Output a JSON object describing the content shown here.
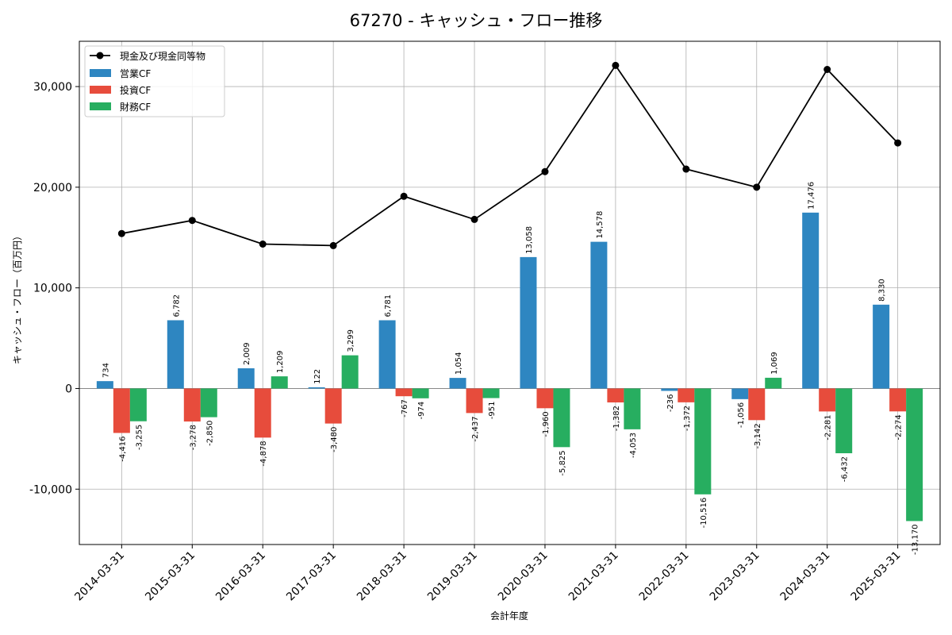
{
  "chart_data": {
    "type": "bar",
    "title": "67270 - キャッシュ・フロー推移",
    "xlabel": "会計年度",
    "ylabel": "キャッシュ・フロー（百万円）",
    "categories": [
      "2014-03-31",
      "2015-03-31",
      "2016-03-31",
      "2017-03-31",
      "2018-03-31",
      "2019-03-31",
      "2020-03-31",
      "2021-03-31",
      "2022-03-31",
      "2023-03-31",
      "2024-03-31",
      "2025-03-31"
    ],
    "ylim": [
      -15500,
      34500
    ],
    "yticks": [
      -10000,
      0,
      10000,
      20000,
      30000
    ],
    "ytick_labels": [
      "-10,000",
      "0",
      "10,000",
      "20,000",
      "30,000"
    ],
    "grid": true,
    "legend_position": "top-left",
    "series": [
      {
        "name": "営業CF",
        "kind": "bar",
        "color": "#2e86c1",
        "values": [
          734,
          6782,
          2009,
          122,
          6781,
          1054,
          13058,
          14578,
          -236,
          -1056,
          17476,
          8330
        ],
        "labels": [
          "734",
          "6,782",
          "2,009",
          "122",
          "6,781",
          "1,054",
          "13,058",
          "14,578",
          "-236",
          "-1,056",
          "17,476",
          "8,330"
        ]
      },
      {
        "name": "投資CF",
        "kind": "bar",
        "color": "#e74c3c",
        "values": [
          -4416,
          -3278,
          -4878,
          -3480,
          -767,
          -2437,
          -1960,
          -1382,
          -1372,
          -3142,
          -2281,
          -2274
        ],
        "labels": [
          "-4,416",
          "-3,278",
          "-4,878",
          "-3,480",
          "-767",
          "-2,437",
          "-1,960",
          "-1,382",
          "-1,372",
          "-3,142",
          "-2,281",
          "-2,274"
        ]
      },
      {
        "name": "財務CF",
        "kind": "bar",
        "color": "#27ae60",
        "values": [
          -3255,
          -2850,
          1209,
          3299,
          -974,
          -951,
          -5825,
          -4053,
          -10516,
          1069,
          -6432,
          -13170
        ],
        "labels": [
          "-3,255",
          "-2,850",
          "1,209",
          "3,299",
          "-974",
          "-951",
          "-5,825",
          "-4,053",
          "-10,516",
          "1,069",
          "-6,432",
          "-13,170"
        ]
      }
    ],
    "line_series": {
      "name": "現金及び現金同等物",
      "kind": "line",
      "color": "#000000",
      "values": [
        15400,
        16700,
        14350,
        14200,
        19100,
        16800,
        21550,
        32100,
        21800,
        20000,
        31700,
        24400
      ]
    }
  }
}
